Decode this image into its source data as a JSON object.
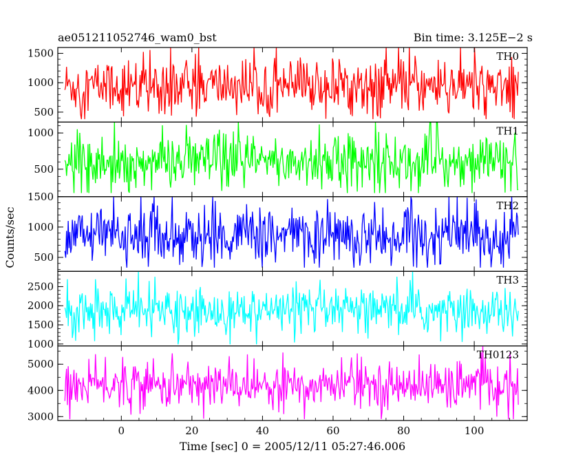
{
  "chart_data": {
    "type": "line",
    "title_left": "ae051211052746_wam0_bst",
    "title_right": "Bin time: 3.125E−2 s",
    "xlabel": "Time [sec] 0 = 2005/12/11 05:27:46.006",
    "ylabel": "Counts/sec",
    "xlim": [
      -18,
      115
    ],
    "x_ticks": [
      0,
      20,
      40,
      60,
      80,
      100
    ],
    "x_tick_labels": [
      "0",
      "20",
      "40",
      "60",
      "80",
      "100"
    ],
    "x_data_range": [
      -16,
      112.5
    ],
    "panels": [
      {
        "name": "TH0",
        "color": "#ff0000",
        "ylim": [
          330,
          1600
        ],
        "ticks": [
          500,
          1000,
          1500
        ],
        "tick_labels": [
          "500",
          "1000",
          "1500"
        ],
        "mean": 950,
        "spread": 230,
        "min": 380,
        "max": 1600
      },
      {
        "name": "TH1",
        "color": "#00ff00",
        "ylim": [
          120,
          1150
        ],
        "ticks": [
          500,
          1000
        ],
        "tick_labels": [
          "500",
          "1000"
        ],
        "mean": 600,
        "spread": 190,
        "min": 170,
        "max": 1150
      },
      {
        "name": "TH2",
        "color": "#0000ff",
        "ylim": [
          270,
          1500
        ],
        "ticks": [
          500,
          1000,
          1500
        ],
        "tick_labels": [
          "500",
          "1000",
          "1500"
        ],
        "mean": 860,
        "spread": 230,
        "min": 330,
        "max": 1500
      },
      {
        "name": "TH3",
        "color": "#00ffff",
        "ylim": [
          950,
          2900
        ],
        "ticks": [
          1000,
          1500,
          2000,
          2500
        ],
        "tick_labels": [
          "1000",
          "1500",
          "2000",
          "2500"
        ],
        "mean": 1850,
        "spread": 290,
        "min": 990,
        "max": 2900
      },
      {
        "name": "TH0123",
        "color": "#ff00ff",
        "ylim": [
          2850,
          5700
        ],
        "ticks": [
          3000,
          4000,
          5000
        ],
        "tick_labels": [
          "3000",
          "4000",
          "5000"
        ],
        "mean": 4200,
        "spread": 430,
        "min": 2900,
        "max": 5700
      }
    ]
  }
}
